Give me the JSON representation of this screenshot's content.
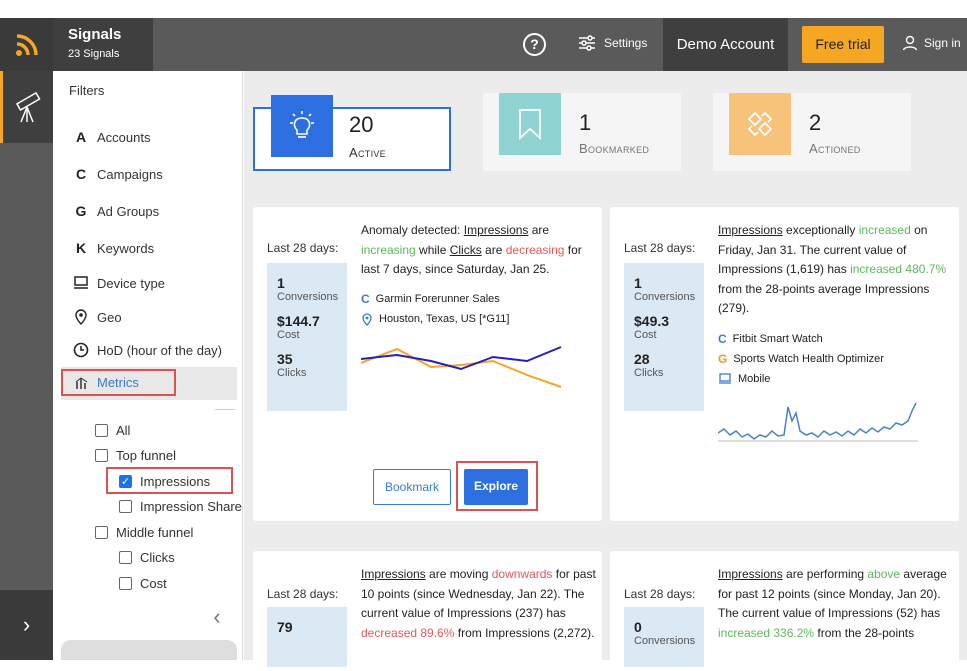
{
  "header": {
    "app_name": "Signals",
    "signal_count": "23 Signals",
    "help": "?",
    "settings": "Settings",
    "account": "Demo Account",
    "trial": "Free trial",
    "signin": "Sign in"
  },
  "filters": {
    "title": "Filters",
    "items": [
      {
        "icon": "A",
        "label": "Accounts"
      },
      {
        "icon": "C",
        "label": "Campaigns"
      },
      {
        "icon": "G",
        "label": "Ad Groups"
      },
      {
        "icon": "K",
        "label": "Keywords"
      },
      {
        "icon": "device-icon",
        "label": "Device type"
      },
      {
        "icon": "pin-icon",
        "label": "Geo"
      },
      {
        "icon": "clock-icon",
        "label": "HoD (hour of the day)"
      }
    ],
    "metrics_label": "Metrics",
    "checks": [
      {
        "label": "All",
        "checked": false
      },
      {
        "label": "Top funnel",
        "checked": false
      },
      {
        "label": "Impressions",
        "checked": true
      },
      {
        "label": "Impression Share",
        "checked": false
      },
      {
        "label": "Middle funnel",
        "checked": false
      },
      {
        "label": "Clicks",
        "checked": false
      },
      {
        "label": "Cost",
        "checked": false
      }
    ]
  },
  "stats": [
    {
      "num": "20",
      "label": "Active",
      "color": "#2d6fe0"
    },
    {
      "num": "1",
      "label": "Bookmarked",
      "color": "#8fd3d3"
    },
    {
      "num": "2",
      "label": "Actioned",
      "color": "#f7c27a"
    }
  ],
  "cards": [
    {
      "period": "Last 28 days:",
      "conv_num": "1",
      "conv_label": "Conversions",
      "cost_num": "$144.7",
      "cost_label": "Cost",
      "clicks_num": "35",
      "clicks_label": "Clicks",
      "d1": "Anomaly detected: ",
      "d2": "Impressions",
      "d3": " are ",
      "d4": "increasing",
      "d5": " while ",
      "d6": "Clicks",
      "d7": " are ",
      "d8": "decreasing",
      "d9": " for last 7 days, since Saturday, Jan 25.",
      "tag1": "Garmin Forerunner Sales",
      "tag2": "Houston, Texas, US [*G11]",
      "bookmark": "Bookmark",
      "explore": "Explore"
    },
    {
      "period": "Last 28 days:",
      "conv_num": "1",
      "conv_label": "Conversions",
      "cost_num": "$49.3",
      "cost_label": "Cost",
      "clicks_num": "28",
      "clicks_label": "Clicks",
      "d1": "Impressions",
      "d2": " exceptionally ",
      "d3": "increased",
      "d4": " on Friday, Jan 31. The current value of Impressions (1,619) has ",
      "d5": "increased 480.7%",
      "d6": " from the 28-points average Impressions (279).",
      "tag1": "Fitbit Smart Watch",
      "tag2": "Sports Watch Health Optimizer",
      "tag3": "Mobile"
    },
    {
      "period": "Last 28 days:",
      "conv_num": "79",
      "d1": "Impressions",
      "d2": " are moving ",
      "d3": "downwards",
      "d4": " for past 10 points (since Wednesday, Jan 22). The current value of Impressions (237) has ",
      "d5": "decreased 89.6%",
      "d6": " from Impressions (2,272)."
    },
    {
      "period": "Last 28 days:",
      "conv_num": "0",
      "conv_label": "Conversions",
      "d1": "Impressions",
      "d2": " are performing ",
      "d3": "above",
      "d4": " average for past 12 points (since Monday, Jan 20). The current value of Impressions (52) has ",
      "d5": "increased 336.2%",
      "d6": " from the 28-points"
    }
  ]
}
